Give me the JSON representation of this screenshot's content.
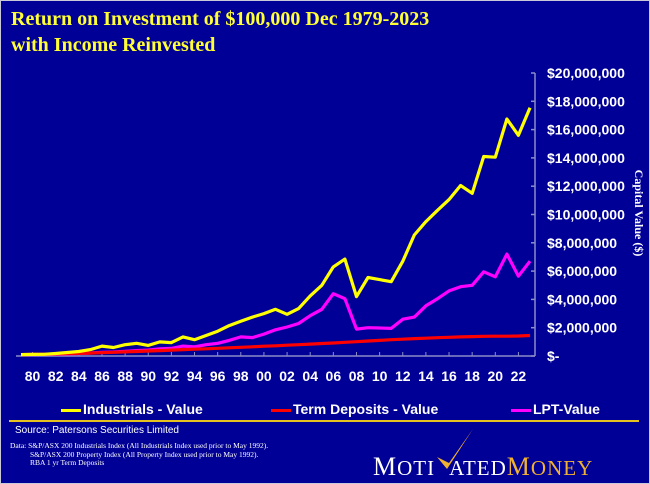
{
  "chart_data": {
    "type": "line",
    "title": [
      "Return on Investment of $100,000 Dec 1979-2023",
      "with Income Reinvested"
    ],
    "xlabel": "",
    "ylabel": "Capital Value ($)",
    "ylim": [
      0,
      20000000
    ],
    "yticks": [
      0,
      2000000,
      4000000,
      6000000,
      8000000,
      10000000,
      12000000,
      14000000,
      16000000,
      18000000,
      20000000
    ],
    "ytick_labels": [
      "$-",
      "$2,000,000",
      "$4,000,000",
      "$6,000,000",
      "$8,000,000",
      "$10,000,000",
      "$12,000,000",
      "$14,000,000",
      "$16,000,000",
      "$18,000,000",
      "$20,000,000"
    ],
    "x": [
      1979,
      1980,
      1981,
      1982,
      1983,
      1984,
      1985,
      1986,
      1987,
      1988,
      1989,
      1990,
      1991,
      1992,
      1993,
      1994,
      1995,
      1996,
      1997,
      1998,
      1999,
      2000,
      2001,
      2002,
      2003,
      2004,
      2005,
      2006,
      2007,
      2008,
      2009,
      2010,
      2011,
      2012,
      2013,
      2014,
      2015,
      2016,
      2017,
      2018,
      2019,
      2020,
      2021,
      2022,
      2023
    ],
    "xtick_labels": [
      "80",
      "82",
      "84",
      "86",
      "88",
      "90",
      "92",
      "94",
      "96",
      "98",
      "00",
      "02",
      "04",
      "06",
      "08",
      "10",
      "12",
      "14",
      "16",
      "18",
      "20",
      "22"
    ],
    "xtick_years": [
      1980,
      1982,
      1984,
      1986,
      1988,
      1990,
      1992,
      1994,
      1996,
      1998,
      2000,
      2002,
      2004,
      2006,
      2008,
      2010,
      2012,
      2014,
      2016,
      2018,
      2020,
      2022
    ],
    "grid": false,
    "legend_position": "bottom",
    "series": [
      {
        "name": "Industrials - Value",
        "color": "#ffff00",
        "values": [
          100000,
          110000,
          120000,
          180000,
          250000,
          320000,
          450000,
          700000,
          600000,
          800000,
          900000,
          750000,
          1000000,
          950000,
          1350000,
          1150000,
          1450000,
          1750000,
          2150000,
          2450000,
          2750000,
          3000000,
          3300000,
          2950000,
          3350000,
          4250000,
          5000000,
          6300000,
          6850000,
          4200000,
          5550000,
          5400000,
          5250000,
          6700000,
          8550000,
          9500000,
          10300000,
          11050000,
          12050000,
          11500000,
          14100000,
          14050000,
          16750000,
          15600000,
          17550000
        ]
      },
      {
        "name": "Term Deposits - Value",
        "color": "#ff0000",
        "values": [
          100000,
          110000,
          125000,
          145000,
          165000,
          185000,
          205000,
          230000,
          260000,
          290000,
          320000,
          350000,
          385000,
          420000,
          450000,
          480000,
          510000,
          545000,
          580000,
          615000,
          650000,
          690000,
          720000,
          760000,
          800000,
          840000,
          880000,
          920000,
          970000,
          1010000,
          1060000,
          1100000,
          1150000,
          1190000,
          1230000,
          1260000,
          1290000,
          1320000,
          1350000,
          1370000,
          1390000,
          1400000,
          1400000,
          1410000,
          1450000
        ]
      },
      {
        "name": "LPT-Value",
        "color": "#ff00ff",
        "values": [
          100000,
          105000,
          115000,
          130000,
          150000,
          180000,
          210000,
          260000,
          280000,
          330000,
          380000,
          420000,
          500000,
          540000,
          700000,
          650000,
          800000,
          900000,
          1100000,
          1350000,
          1300000,
          1550000,
          1850000,
          2050000,
          2300000,
          2850000,
          3300000,
          4400000,
          4050000,
          1900000,
          2000000,
          1980000,
          1950000,
          2600000,
          2750000,
          3550000,
          4050000,
          4600000,
          4900000,
          5000000,
          5950000,
          5600000,
          7200000,
          5650000,
          6700000
        ]
      }
    ]
  },
  "footer": {
    "source": "Source: Patersons Securities Limited",
    "notes": [
      "Data: S&P/ASX 200 Industrials Index (All Industrials Index used prior to May 1992).",
      "S&P/ASX 200 Property Index (All Property Index used prior to May 1992).",
      "RBA 1 yr Term Deposits"
    ],
    "logo": {
      "part1_initial": "M",
      "part1_rest": "OTI",
      "part2_rest": "ATED",
      "part3_initial": "M",
      "part3_rest": "ONEY"
    }
  }
}
